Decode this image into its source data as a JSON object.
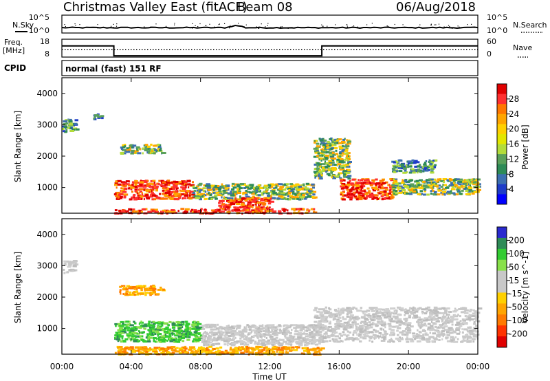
{
  "header": {
    "station": "Christmas Valley East (fitACF)",
    "beam": "Beam 08",
    "date": "06/Aug/2018"
  },
  "left_labels": {
    "nsky": "N.Sky",
    "freq_line1": "Freq.",
    "freq_line2": "[MHz]",
    "cpid": "CPID"
  },
  "right_labels": {
    "nsearch": "N.Search",
    "nave": "Nave"
  },
  "cpid_value": "normal (fast) 151 RF",
  "noise_panel": {
    "left_ticks": [
      "10^5",
      "10^0"
    ],
    "right_ticks": [
      "10^5",
      "10^0"
    ]
  },
  "freq_panel": {
    "left_ticks": [
      "18",
      "8"
    ],
    "right_ticks": [
      "60",
      "0"
    ]
  },
  "power_panel": {
    "ylabel": "Slant Range [km]",
    "yticks": [
      "4000",
      "3000",
      "2000",
      "1000"
    ],
    "colorbar_label": "Power [dB]",
    "colorbar_ticks": [
      "28",
      "24",
      "20",
      "16",
      "12",
      "8",
      "4"
    ],
    "colorbar_colors": [
      "#e00000",
      "#ff3030",
      "#ff7700",
      "#ffa500",
      "#ffd000",
      "#e3e600",
      "#b3dc3a",
      "#5aa05a",
      "#2e8b57",
      "#3c6fb0",
      "#1e3cc8",
      "#0000ff"
    ]
  },
  "velocity_panel": {
    "ylabel": "Slant Range [km]",
    "yticks": [
      "4000",
      "3000",
      "2000",
      "1000"
    ],
    "colorbar_label": "Velocity [m s^-1]",
    "colorbar_ticks": [
      "200",
      "100",
      "50",
      "15",
      "-15",
      "-50",
      "-100",
      "-200"
    ],
    "colorbar_colors": [
      "#2a2acf",
      "#2e8b57",
      "#33cc33",
      "#88e04a",
      "#c8c8c8",
      "#c8c8c8",
      "#ffd000",
      "#ffa500",
      "#ff7a00",
      "#ff3300",
      "#e00000"
    ]
  },
  "xaxis": {
    "label": "Time UT",
    "ticks": [
      "00:00",
      "04:00",
      "08:00",
      "12:00",
      "16:00",
      "20:00",
      "00:00"
    ]
  },
  "chart_data": {
    "type": "heatmap",
    "title": "Christmas Valley East (fitACF) Beam 08 06/Aug/2018",
    "xlabel": "Time UT",
    "ylabel": "Slant Range [km]",
    "xlim": [
      "00:00",
      "24:00"
    ],
    "ylim": [
      180,
      4500
    ],
    "frequency_segments": [
      {
        "start_hour": 0,
        "end_hour": 3,
        "freq_mhz": 15
      },
      {
        "start_hour": 3,
        "end_hour": 15,
        "freq_mhz": 9.5
      },
      {
        "start_hour": 15,
        "end_hour": 24,
        "freq_mhz": 15
      }
    ],
    "power_regions": [
      {
        "t0": 0.0,
        "t1": 0.8,
        "r0": 2800,
        "r1": 3200,
        "level": "low"
      },
      {
        "t0": 1.8,
        "t1": 2.3,
        "r0": 3200,
        "r1": 3400,
        "level": "low"
      },
      {
        "t0": 3.3,
        "t1": 5.8,
        "r0": 2100,
        "r1": 2400,
        "level": "medium"
      },
      {
        "t0": 3.0,
        "t1": 7.5,
        "r0": 650,
        "r1": 1250,
        "level": "high"
      },
      {
        "t0": 7.5,
        "t1": 14.5,
        "r0": 650,
        "r1": 1150,
        "level": "medium"
      },
      {
        "t0": 9.0,
        "t1": 12.0,
        "r0": 350,
        "r1": 700,
        "level": "high"
      },
      {
        "t0": 3.0,
        "t1": 14.5,
        "r0": 200,
        "r1": 350,
        "level": "high"
      },
      {
        "t0": 14.5,
        "t1": 16.5,
        "r0": 1300,
        "r1": 2600,
        "level": "medium"
      },
      {
        "t0": 16.0,
        "t1": 19.0,
        "r0": 650,
        "r1": 1300,
        "level": "high"
      },
      {
        "t0": 19.0,
        "t1": 24.0,
        "r0": 800,
        "r1": 1300,
        "level": "medium"
      },
      {
        "t0": 19.0,
        "t1": 21.5,
        "r0": 1500,
        "r1": 1900,
        "level": "low"
      }
    ],
    "velocity_regions": [
      {
        "t0": 0.0,
        "t1": 0.8,
        "r0": 2800,
        "r1": 3200,
        "class": "near-zero"
      },
      {
        "t0": 3.3,
        "t1": 5.8,
        "r0": 2100,
        "r1": 2400,
        "class": "negative"
      },
      {
        "t0": 3.0,
        "t1": 8.0,
        "r0": 600,
        "r1": 1250,
        "class": "positive"
      },
      {
        "t0": 8.0,
        "t1": 15.0,
        "r0": 500,
        "r1": 1150,
        "class": "near-zero"
      },
      {
        "t0": 3.0,
        "t1": 15.0,
        "r0": 200,
        "r1": 450,
        "class": "negative"
      },
      {
        "t0": 14.5,
        "t1": 24.0,
        "r0": 600,
        "r1": 1700,
        "class": "near-zero"
      }
    ]
  }
}
